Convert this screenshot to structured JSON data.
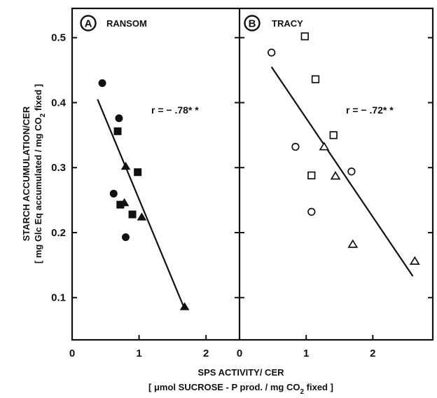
{
  "chart_data": {
    "type": "scatter",
    "ylabel_line1": "STARCH  ACCUMULATION/CER",
    "ylabel_line2": "[ mg Glc Eq  accumulated / mg CO",
    "ylabel_line2_sub": "2",
    "ylabel_line2_end": "  fixed ]",
    "xlabel_line1": "SPS  ACTIVITY/ CER",
    "xlabel_line2": "[ μmol  SUCROSE - P   prod. / mg  CO",
    "xlabel_line2_sub": "2",
    "xlabel_line2_end": "  fixed ]",
    "yticks": [
      "0.1",
      "0.2",
      "0.3",
      "0.4",
      "0.5"
    ],
    "ylim": [
      0.035,
      0.545
    ],
    "panels": [
      {
        "letter": "A",
        "title": "RANSOM",
        "r_label": "r = − .78* *",
        "xlim": [
          0,
          2.5
        ],
        "xticks": [
          "0",
          "1",
          "2"
        ],
        "regression": [
          [
            0.38,
            0.405
          ],
          [
            1.67,
            0.085
          ]
        ],
        "series": [
          {
            "marker": "circle-filled",
            "points": [
              [
                0.45,
                0.43
              ],
              [
                0.7,
                0.376
              ],
              [
                0.62,
                0.26
              ],
              [
                0.8,
                0.193
              ]
            ]
          },
          {
            "marker": "square-filled",
            "points": [
              [
                0.68,
                0.356
              ],
              [
                0.98,
                0.293
              ],
              [
                0.72,
                0.243
              ],
              [
                0.9,
                0.228
              ]
            ]
          },
          {
            "marker": "triangle-filled",
            "points": [
              [
                0.8,
                0.302
              ],
              [
                0.78,
                0.246
              ],
              [
                1.04,
                0.224
              ],
              [
                1.68,
                0.086
              ]
            ]
          }
        ]
      },
      {
        "letter": "B",
        "title": "TRACY",
        "r_label": "r = − .72* *",
        "xlim": [
          0,
          2.9
        ],
        "xticks": [
          "0",
          "1",
          "2"
        ],
        "regression": [
          [
            0.48,
            0.455
          ],
          [
            2.6,
            0.133
          ]
        ],
        "series": [
          {
            "marker": "circle-open",
            "points": [
              [
                0.48,
                0.477
              ],
              [
                0.84,
                0.332
              ],
              [
                1.08,
                0.232
              ],
              [
                1.68,
                0.294
              ]
            ]
          },
          {
            "marker": "square-open",
            "points": [
              [
                0.98,
                0.502
              ],
              [
                1.14,
                0.436
              ],
              [
                1.41,
                0.35
              ],
              [
                1.08,
                0.288
              ]
            ]
          },
          {
            "marker": "triangle-open",
            "points": [
              [
                1.27,
                0.332
              ],
              [
                1.44,
                0.287
              ],
              [
                1.7,
                0.182
              ],
              [
                2.63,
                0.156
              ]
            ]
          }
        ]
      }
    ]
  }
}
